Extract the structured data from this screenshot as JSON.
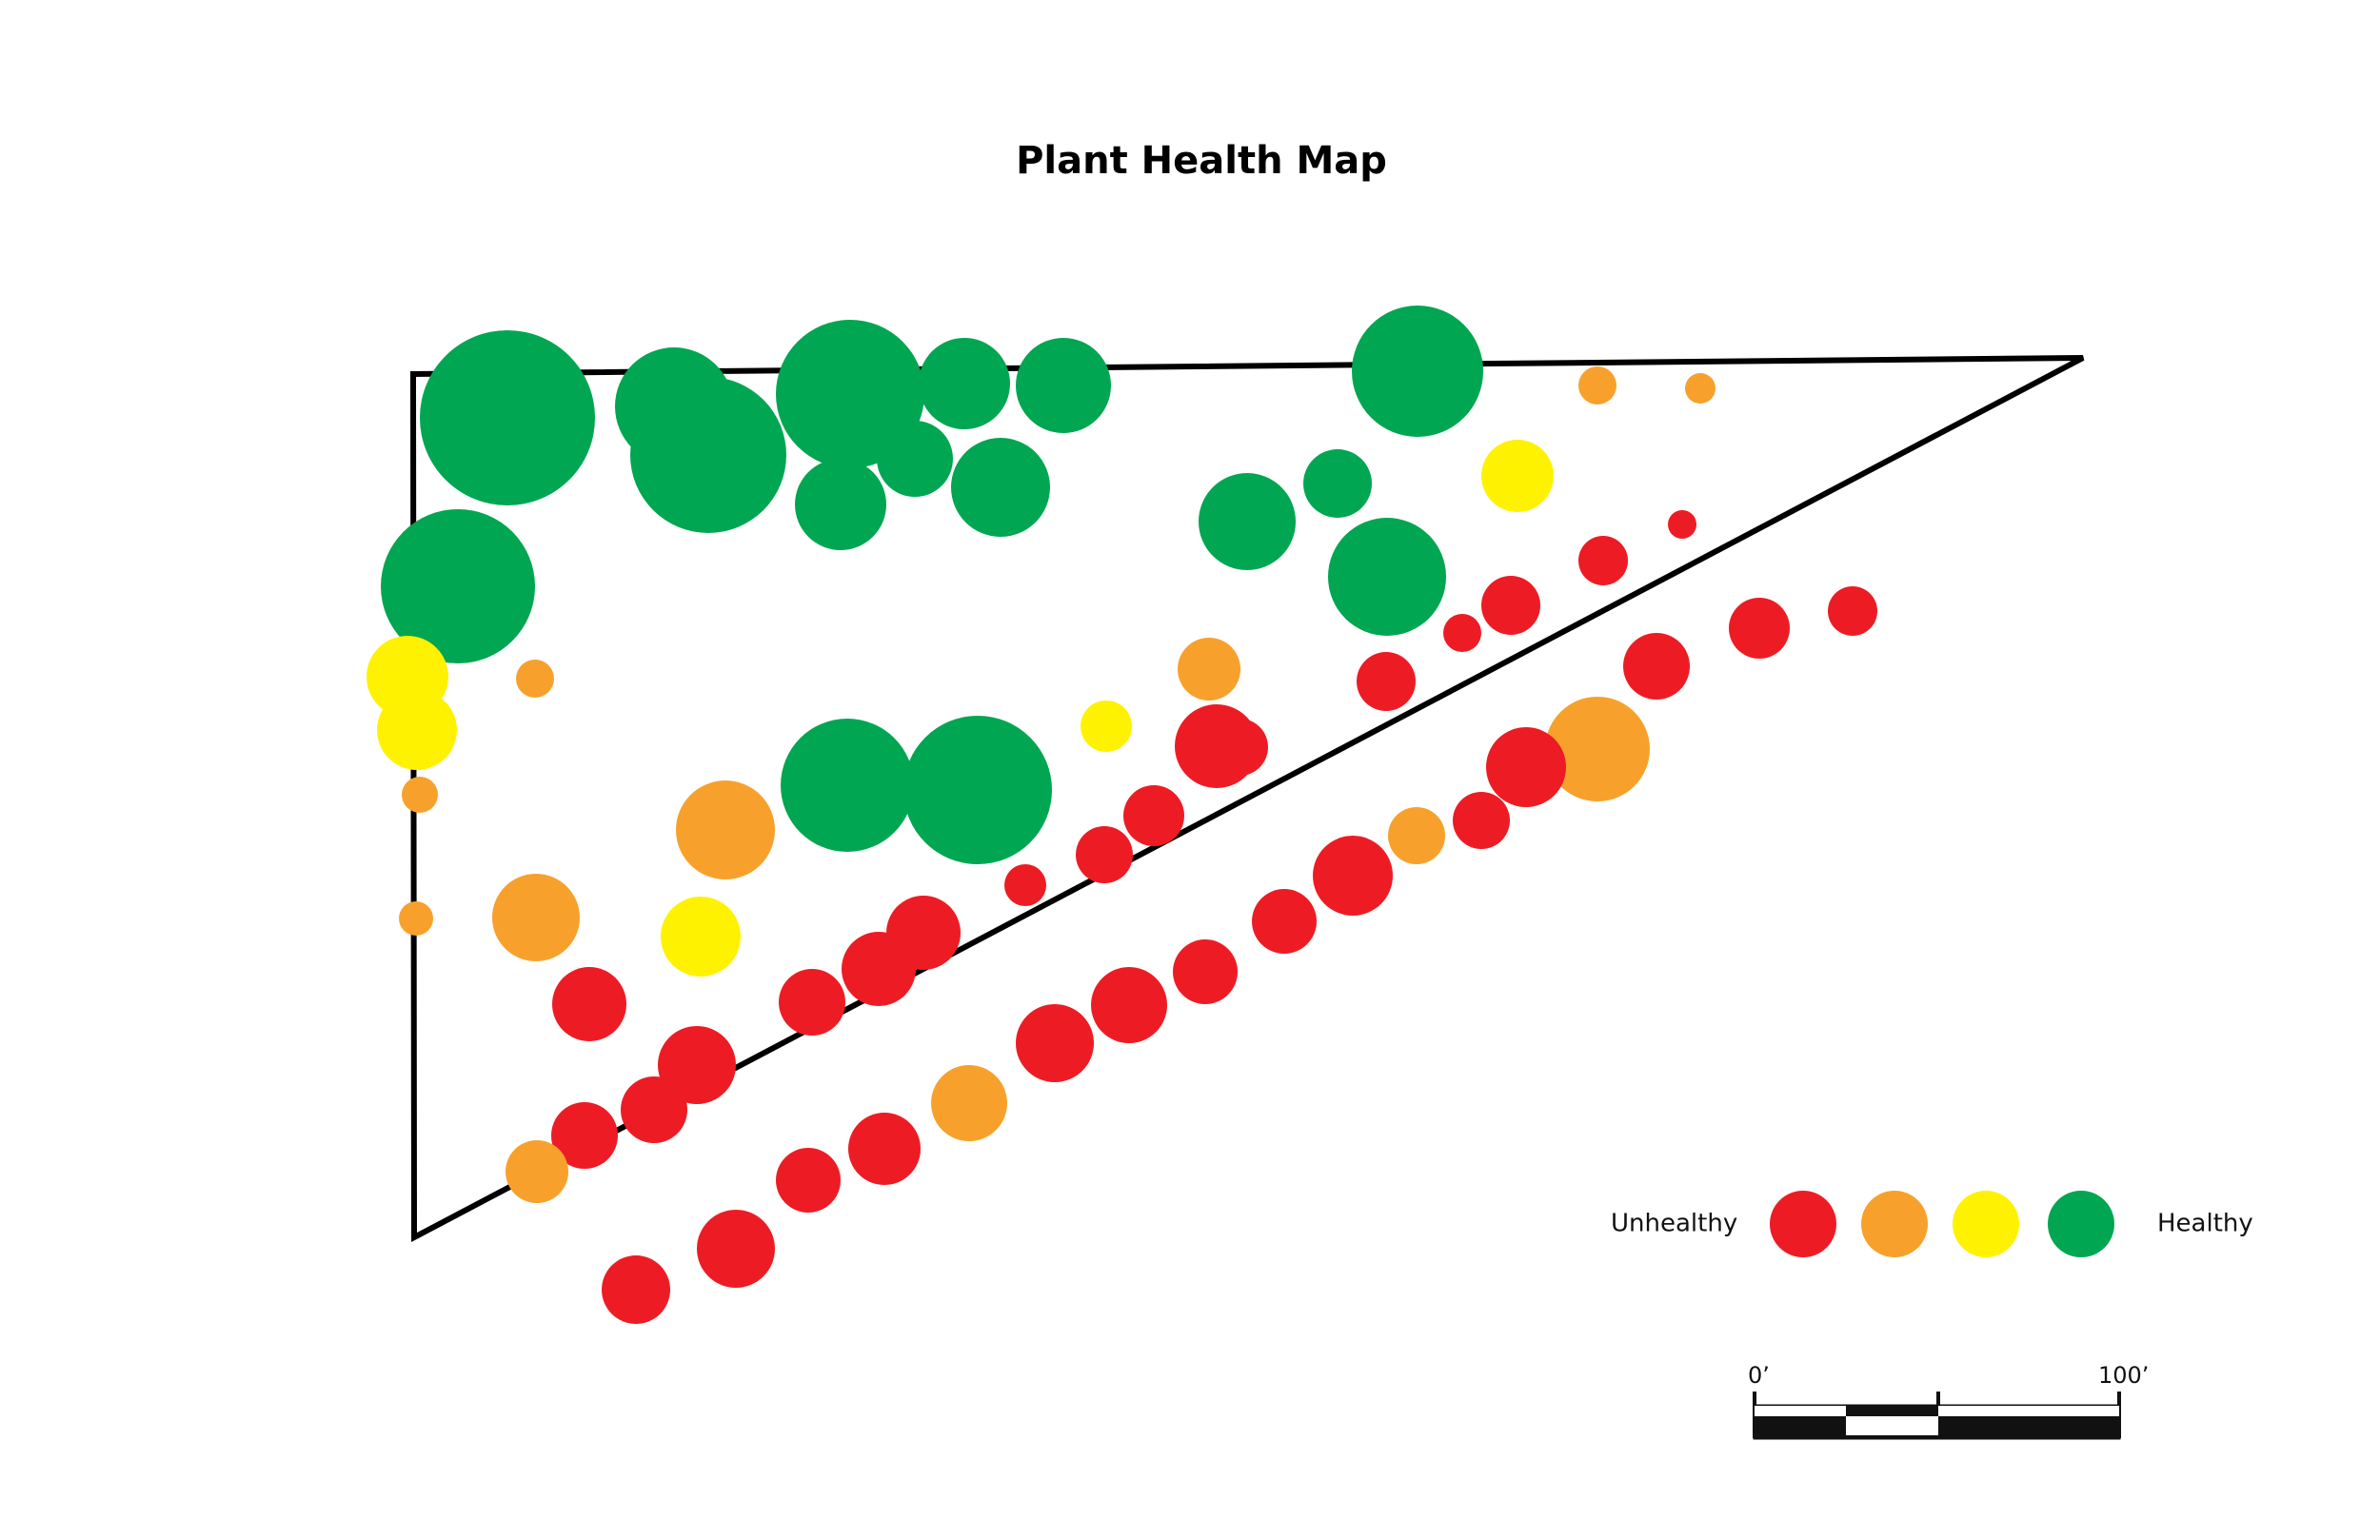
{
  "title": "Plant Health Map",
  "colors": {
    "unhealthy": "#ed1c24",
    "poor": "#f7a12c",
    "fair": "#fff200",
    "healthy": "#00a651",
    "outline": "#000000"
  },
  "legend": {
    "low_label": "Unhealthy",
    "high_label": "Healthy",
    "levels": [
      "unhealthy",
      "poor",
      "fair",
      "healthy"
    ]
  },
  "scale_bar": {
    "start_label": "0’",
    "end_label": "100’"
  },
  "plants": [
    {
      "health": "healthy"
    },
    {
      "health": "healthy"
    },
    {
      "health": "healthy"
    },
    {
      "health": "healthy"
    },
    {
      "health": "healthy"
    },
    {
      "health": "healthy"
    },
    {
      "health": "healthy"
    },
    {
      "health": "healthy"
    },
    {
      "health": "healthy"
    },
    {
      "health": "healthy"
    },
    {
      "health": "healthy"
    },
    {
      "health": "healthy"
    },
    {
      "health": "healthy"
    },
    {
      "health": "healthy"
    },
    {
      "health": "healthy"
    },
    {
      "health": "healthy"
    },
    {
      "health": "poor"
    },
    {
      "health": "poor"
    },
    {
      "health": "fair"
    },
    {
      "health": "unhealthy"
    },
    {
      "health": "unhealthy"
    },
    {
      "health": "unhealthy"
    },
    {
      "health": "unhealthy"
    },
    {
      "health": "unhealthy"
    },
    {
      "health": "poor"
    },
    {
      "health": "fair"
    },
    {
      "health": "fair"
    },
    {
      "health": "poor"
    },
    {
      "health": "poor"
    },
    {
      "health": "poor"
    },
    {
      "health": "fair"
    },
    {
      "health": "poor"
    },
    {
      "health": "fair"
    },
    {
      "health": "poor"
    },
    {
      "health": "unhealthy"
    },
    {
      "health": "unhealthy"
    },
    {
      "health": "unhealthy"
    },
    {
      "health": "unhealthy"
    },
    {
      "health": "unhealthy"
    },
    {
      "health": "unhealthy"
    },
    {
      "health": "unhealthy"
    },
    {
      "health": "unhealthy"
    },
    {
      "health": "unhealthy"
    },
    {
      "health": "unhealthy"
    },
    {
      "health": "unhealthy"
    },
    {
      "health": "poor"
    },
    {
      "health": "poor"
    },
    {
      "health": "unhealthy"
    },
    {
      "health": "unhealthy"
    },
    {
      "health": "poor"
    },
    {
      "health": "unhealthy"
    },
    {
      "health": "unhealthy"
    },
    {
      "health": "unhealthy"
    },
    {
      "health": "unhealthy"
    },
    {
      "health": "unhealthy"
    },
    {
      "health": "poor"
    },
    {
      "health": "unhealthy"
    },
    {
      "health": "unhealthy"
    },
    {
      "health": "unhealthy"
    },
    {
      "health": "unhealthy"
    },
    {
      "health": "unhealthy"
    },
    {
      "health": "unhealthy"
    },
    {
      "health": "unhealthy"
    },
    {
      "health": "unhealthy"
    }
  ]
}
